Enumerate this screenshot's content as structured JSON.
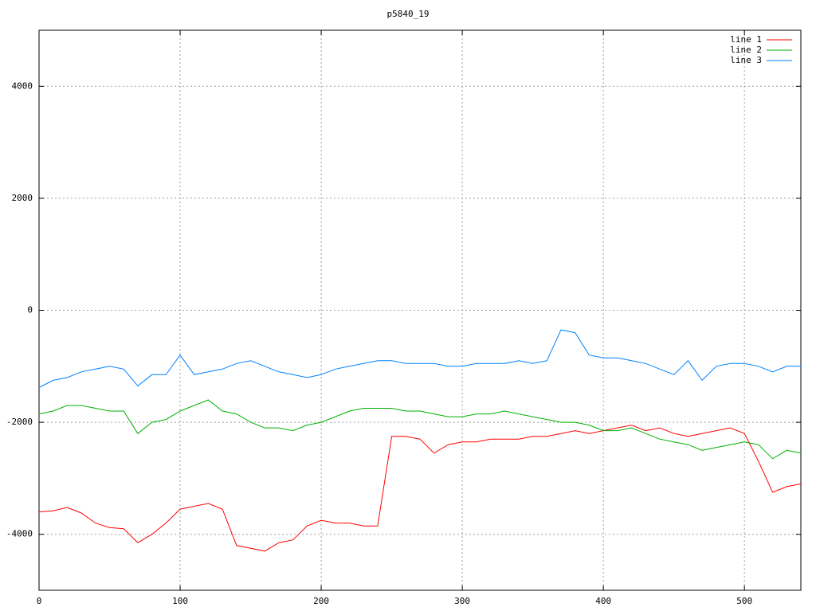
{
  "chart_data": {
    "type": "line",
    "title": "p5840_19",
    "x": [
      0,
      10,
      20,
      30,
      40,
      50,
      60,
      70,
      80,
      90,
      100,
      110,
      120,
      130,
      140,
      150,
      160,
      170,
      180,
      190,
      200,
      210,
      220,
      230,
      240,
      250,
      260,
      270,
      280,
      290,
      300,
      310,
      320,
      330,
      340,
      350,
      360,
      370,
      380,
      390,
      400,
      410,
      420,
      430,
      440,
      450,
      460,
      470,
      480,
      490,
      500,
      510,
      520,
      530,
      540
    ],
    "series": [
      {
        "name": "line 1",
        "color": "#ff0000",
        "values": [
          -3600,
          -3580,
          -3520,
          -3620,
          -3800,
          -3880,
          -3900,
          -4150,
          -4000,
          -3800,
          -3550,
          -3500,
          -3450,
          -3550,
          -4200,
          -4250,
          -4300,
          -4150,
          -4100,
          -3850,
          -3750,
          -3800,
          -3800,
          -3850,
          -3850,
          -2250,
          -2250,
          -2300,
          -2550,
          -2400,
          -2350,
          -2350,
          -2300,
          -2300,
          -2300,
          -2250,
          -2250,
          -2200,
          -2150,
          -2200,
          -2150,
          -2100,
          -2050,
          -2150,
          -2100,
          -2200,
          -2250,
          -2200,
          -2150,
          -2100,
          -2200,
          -2700,
          -3250,
          -3150,
          -3100
        ]
      },
      {
        "name": "line 2",
        "color": "#00b000",
        "values": [
          -1850,
          -1800,
          -1700,
          -1700,
          -1750,
          -1800,
          -1800,
          -2200,
          -2000,
          -1950,
          -1800,
          -1700,
          -1600,
          -1800,
          -1850,
          -2000,
          -2100,
          -2100,
          -2150,
          -2050,
          -2000,
          -1900,
          -1800,
          -1750,
          -1750,
          -1750,
          -1800,
          -1800,
          -1850,
          -1900,
          -1900,
          -1850,
          -1850,
          -1800,
          -1850,
          -1900,
          -1950,
          -2000,
          -2000,
          -2050,
          -2150,
          -2150,
          -2100,
          -2200,
          -2300,
          -2350,
          -2400,
          -2500,
          -2450,
          -2400,
          -2350,
          -2400,
          -2650,
          -2500,
          -2550
        ]
      },
      {
        "name": "line 3",
        "color": "#0080ff",
        "values": [
          -1380,
          -1250,
          -1200,
          -1100,
          -1050,
          -1000,
          -1050,
          -1350,
          -1150,
          -1150,
          -800,
          -1150,
          -1100,
          -1050,
          -950,
          -900,
          -1000,
          -1100,
          -1150,
          -1200,
          -1150,
          -1050,
          -1000,
          -950,
          -900,
          -900,
          -950,
          -950,
          -950,
          -1000,
          -1000,
          -950,
          -950,
          -950,
          -900,
          -950,
          -900,
          -350,
          -400,
          -800,
          -850,
          -850,
          -900,
          -950,
          -1050,
          -1150,
          -900,
          -1250,
          -1000,
          -950,
          -950,
          -1000,
          -1100,
          -1000,
          -1000
        ]
      }
    ],
    "xlim": [
      0,
      540
    ],
    "xticks": [
      0,
      100,
      200,
      300,
      400,
      500
    ],
    "ylim": [
      -5000,
      5000
    ],
    "yticks": [
      -4000,
      -2000,
      0,
      2000,
      4000
    ],
    "grid": true,
    "legend": "top-right"
  }
}
